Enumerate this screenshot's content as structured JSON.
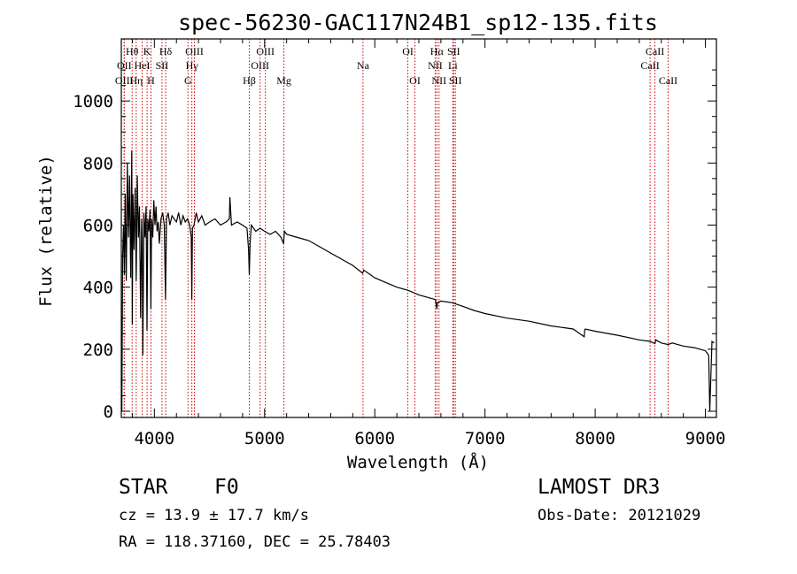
{
  "chart_data": {
    "type": "line",
    "title": "spec-56230-GAC117N24B1_sp12-135.fits",
    "xlabel": "Wavelength (Å)",
    "ylabel": "Flux (relative)",
    "xlim": [
      3700,
      9100
    ],
    "ylim": [
      -20,
      1200
    ],
    "x_ticks": [
      4000,
      5000,
      6000,
      7000,
      8000,
      9000
    ],
    "y_ticks": [
      0,
      200,
      400,
      600,
      800,
      1000
    ],
    "series": [
      {
        "name": "flux",
        "x": [
          3700,
          3705,
          3712,
          3720,
          3728,
          3735,
          3745,
          3755,
          3765,
          3775,
          3785,
          3795,
          3800,
          3805,
          3815,
          3825,
          3835,
          3845,
          3855,
          3865,
          3875,
          3885,
          3890,
          3895,
          3905,
          3915,
          3925,
          3933,
          3940,
          3950,
          3960,
          3968,
          3975,
          3985,
          3995,
          4005,
          4015,
          4025,
          4035,
          4045,
          4060,
          4075,
          4090,
          4101,
          4110,
          4125,
          4140,
          4160,
          4180,
          4200,
          4220,
          4240,
          4260,
          4280,
          4300,
          4320,
          4335,
          4340,
          4345,
          4360,
          4380,
          4400,
          4430,
          4460,
          4500,
          4550,
          4600,
          4650,
          4680,
          4685,
          4700,
          4750,
          4800,
          4840,
          4855,
          4861,
          4868,
          4880,
          4920,
          4960,
          5000,
          5050,
          5100,
          5150,
          5172,
          5180,
          5200,
          5300,
          5400,
          5500,
          5600,
          5700,
          5800,
          5890,
          5900,
          6000,
          6100,
          6200,
          6300,
          6400,
          6500,
          6550,
          6563,
          6570,
          6600,
          6700,
          6800,
          6900,
          7000,
          7200,
          7400,
          7600,
          7800,
          7900,
          7905,
          7910,
          8000,
          8200,
          8400,
          8500,
          8542,
          8550,
          8600,
          8662,
          8700,
          8800,
          8900,
          8950,
          9000,
          9030,
          9040,
          9060,
          9080
        ],
        "values": [
          100,
          0,
          500,
          600,
          440,
          700,
          420,
          800,
          560,
          760,
          430,
          840,
          280,
          700,
          520,
          720,
          420,
          760,
          560,
          660,
          300,
          620,
          560,
          180,
          640,
          560,
          660,
          260,
          620,
          580,
          650,
          330,
          620,
          560,
          680,
          600,
          660,
          580,
          610,
          540,
          620,
          640,
          600,
          360,
          620,
          640,
          600,
          630,
          620,
          610,
          640,
          600,
          630,
          610,
          620,
          600,
          560,
          360,
          590,
          600,
          640,
          610,
          630,
          600,
          610,
          620,
          600,
          610,
          620,
          690,
          600,
          610,
          600,
          590,
          520,
          440,
          540,
          600,
          580,
          590,
          580,
          570,
          580,
          560,
          540,
          580,
          570,
          560,
          550,
          530,
          510,
          490,
          470,
          445,
          455,
          430,
          415,
          400,
          390,
          375,
          365,
          360,
          330,
          350,
          355,
          350,
          338,
          325,
          315,
          300,
          290,
          275,
          265,
          240,
          262,
          265,
          258,
          245,
          230,
          225,
          218,
          230,
          220,
          215,
          220,
          210,
          205,
          200,
          195,
          180,
          0,
          225,
          220
        ]
      }
    ],
    "spectral_lines": [
      {
        "label": "Hθ",
        "x": 3798,
        "row": 1
      },
      {
        "label": "OII",
        "x": 3727,
        "row": 2
      },
      {
        "label": "OIII",
        "x": 3726,
        "row": 3
      },
      {
        "label": "Hη",
        "x": 3835,
        "row": 3
      },
      {
        "label": "HeI",
        "x": 3889,
        "row": 2
      },
      {
        "label": "K",
        "x": 3934,
        "row": 1
      },
      {
        "label": "SII",
        "x": 4069,
        "row": 2
      },
      {
        "label": "H",
        "x": 3969,
        "row": 3
      },
      {
        "label": "Hδ",
        "x": 4102,
        "row": 1
      },
      {
        "label": "OIII",
        "x": 4363,
        "row": 1
      },
      {
        "label": "Hγ",
        "x": 4340,
        "row": 2
      },
      {
        "label": "G",
        "x": 4305,
        "row": 3
      },
      {
        "label": "Hβ",
        "x": 4861,
        "row": 3
      },
      {
        "label": "OIII",
        "x": 5007,
        "row": 1
      },
      {
        "label": "OIII",
        "x": 4959,
        "row": 2
      },
      {
        "label": "Mg",
        "x": 5175,
        "row": 3
      },
      {
        "label": "Na",
        "x": 5893,
        "row": 2
      },
      {
        "label": "OI",
        "x": 6300,
        "row": 1
      },
      {
        "label": "OI",
        "x": 6364,
        "row": 3
      },
      {
        "label": "Hα",
        "x": 6563,
        "row": 1
      },
      {
        "label": "NII",
        "x": 6548,
        "row": 2
      },
      {
        "label": "NII",
        "x": 6583,
        "row": 3
      },
      {
        "label": "SII",
        "x": 6716,
        "row": 1
      },
      {
        "label": "Li",
        "x": 6708,
        "row": 2
      },
      {
        "label": "SII",
        "x": 6731,
        "row": 3
      },
      {
        "label": "CaII",
        "x": 8542,
        "row": 1
      },
      {
        "label": "CaII",
        "x": 8498,
        "row": 2
      },
      {
        "label": "CaII",
        "x": 8662,
        "row": 3
      }
    ]
  },
  "info": {
    "object_class": "STAR",
    "subclass": "F0",
    "survey": "LAMOST DR3",
    "redshift": "cz = 13.9 ± 17.7 km/s",
    "obs_date": "Obs-Date: 20121029",
    "coords": "RA = 118.37160, DEC =  25.78403"
  },
  "colors": {
    "line_marker": "#cc0000",
    "spectrum": "#000000",
    "axis": "#000000"
  }
}
